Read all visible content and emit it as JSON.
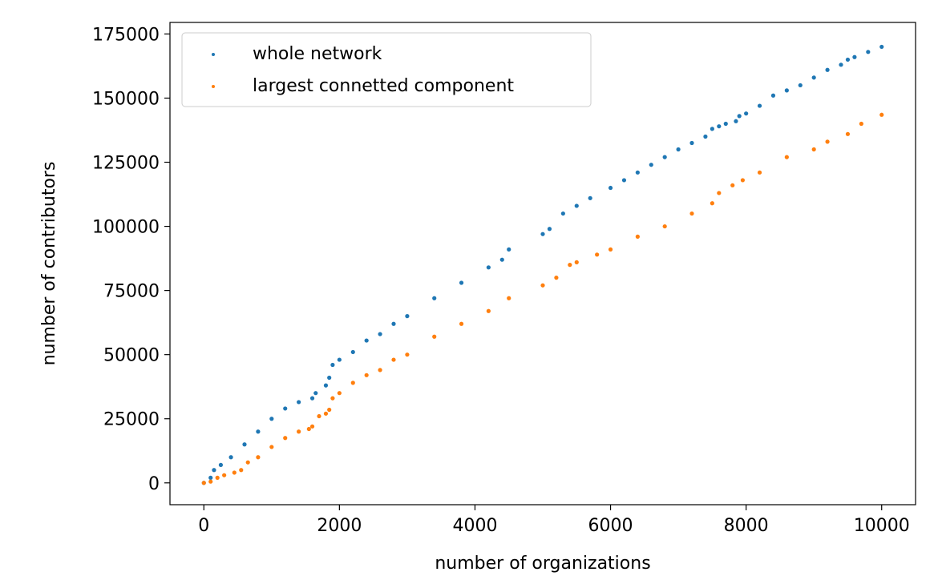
{
  "chart_data": {
    "type": "scatter",
    "xlabel": "number of organizations",
    "ylabel": "number of contributors",
    "xlim": [
      -500,
      10500
    ],
    "ylim": [
      -8500,
      179500
    ],
    "xticks": [
      0,
      2000,
      4000,
      6000,
      8000,
      10000
    ],
    "yticks": [
      0,
      25000,
      50000,
      75000,
      100000,
      125000,
      150000,
      175000
    ],
    "xtick_labels": [
      "0",
      "2000",
      "4000",
      "6000",
      "8000",
      "10000"
    ],
    "ytick_labels": [
      "0",
      "25000",
      "50000",
      "75000",
      "100000",
      "125000",
      "150000",
      "175000"
    ],
    "grid": false,
    "legend_position": "top-left",
    "series": [
      {
        "name": "whole network",
        "color": "#1f77b4",
        "x": [
          0,
          100,
          150,
          250,
          400,
          600,
          800,
          1000,
          1200,
          1400,
          1600,
          1650,
          1800,
          1850,
          1900,
          2000,
          2200,
          2400,
          2600,
          2800,
          3000,
          3400,
          3800,
          4200,
          4400,
          4500,
          5000,
          5100,
          5300,
          5500,
          5700,
          6000,
          6200,
          6400,
          6600,
          6800,
          7000,
          7200,
          7400,
          7500,
          7600,
          7700,
          7850,
          7900,
          8000,
          8200,
          8400,
          8600,
          8800,
          9000,
          9200,
          9400,
          9500,
          9600,
          9800,
          10000
        ],
        "y": [
          0,
          2000,
          5000,
          7000,
          10000,
          15000,
          20000,
          25000,
          29000,
          31500,
          33000,
          35000,
          38000,
          41000,
          46000,
          48000,
          51000,
          55500,
          58000,
          62000,
          65000,
          72000,
          78000,
          84000,
          87000,
          91000,
          97000,
          99000,
          105000,
          108000,
          111000,
          115000,
          118000,
          121000,
          124000,
          127000,
          130000,
          132500,
          135000,
          138000,
          139000,
          140000,
          141000,
          143000,
          144000,
          147000,
          151000,
          153000,
          155000,
          158000,
          161000,
          163000,
          165000,
          166000,
          168000,
          170000
        ]
      },
      {
        "name": "largest connetted component",
        "color": "#ff7f0e",
        "x": [
          0,
          100,
          200,
          300,
          450,
          550,
          650,
          800,
          1000,
          1200,
          1400,
          1550,
          1600,
          1700,
          1800,
          1850,
          1900,
          2000,
          2200,
          2400,
          2600,
          2800,
          3000,
          3400,
          3800,
          4200,
          4500,
          5000,
          5200,
          5400,
          5500,
          5800,
          6000,
          6400,
          6800,
          7200,
          7500,
          7600,
          7800,
          7950,
          8200,
          8600,
          9000,
          9200,
          9500,
          9700,
          10000
        ],
        "y": [
          0,
          500,
          2000,
          3000,
          4000,
          5000,
          8000,
          10000,
          14000,
          17500,
          20000,
          21000,
          22000,
          26000,
          27000,
          28500,
          33000,
          35000,
          39000,
          42000,
          44000,
          48000,
          50000,
          57000,
          62000,
          67000,
          72000,
          77000,
          80000,
          85000,
          86000,
          89000,
          91000,
          96000,
          100000,
          105000,
          109000,
          113000,
          116000,
          118000,
          121000,
          127000,
          130000,
          133000,
          136000,
          140000,
          143500
        ]
      }
    ]
  }
}
